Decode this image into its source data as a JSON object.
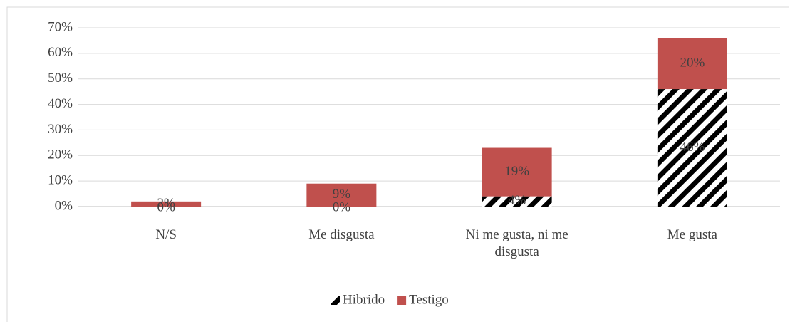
{
  "chart_data": {
    "type": "stacked_bar",
    "categories": [
      "N/S",
      "Me disgusta",
      "Ni me gusta, ni me disgusta",
      "Me gusta"
    ],
    "series": [
      {
        "name": "Hibrido",
        "color": "#000000",
        "values": [
          0,
          0,
          4,
          46
        ],
        "value_labels": [
          "0%",
          "0%",
          "4%",
          "46%"
        ]
      },
      {
        "name": "Testigo",
        "color": "#c0504d",
        "values": [
          2,
          9,
          19,
          20
        ],
        "value_labels": [
          "2%",
          "9%",
          "19%",
          "20%"
        ]
      }
    ],
    "ylim": [
      0,
      70
    ],
    "yticks": [
      {
        "value": 0,
        "label": "0%"
      },
      {
        "value": 10,
        "label": "10%"
      },
      {
        "value": 20,
        "label": "20%"
      },
      {
        "value": 30,
        "label": "30%"
      },
      {
        "value": 40,
        "label": "40%"
      },
      {
        "value": 50,
        "label": "50%"
      },
      {
        "value": 60,
        "label": "60%"
      },
      {
        "value": 70,
        "label": "70%"
      }
    ],
    "grid": true,
    "legend": "bottom"
  }
}
